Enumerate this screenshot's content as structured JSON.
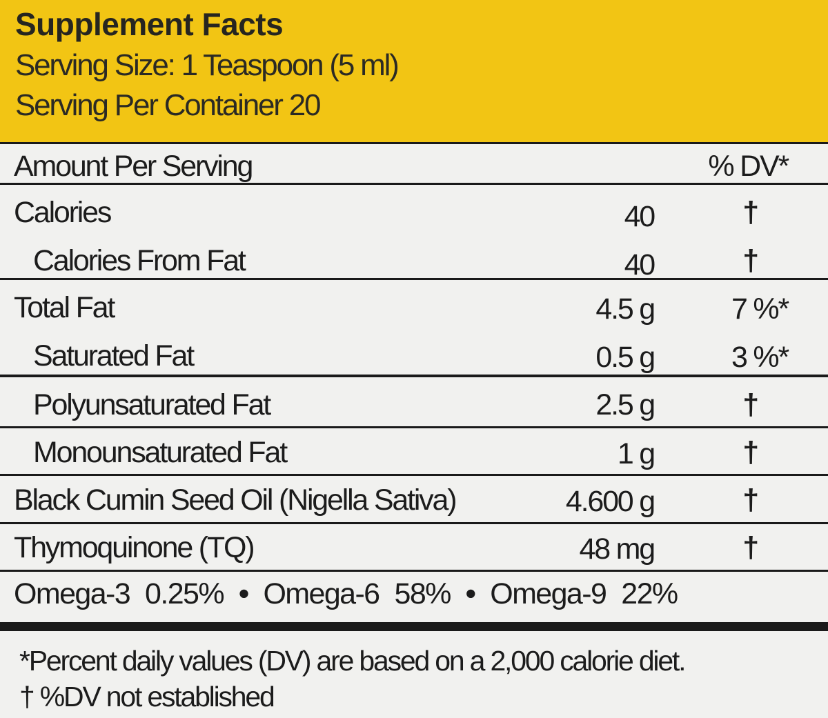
{
  "header": {
    "title": "Supplement Facts",
    "serving_size": "Serving Size: 1 Teaspoon (5 ml)",
    "servings_per_container": "Serving Per Container 20"
  },
  "table": {
    "column_header_label": "Amount Per Serving",
    "column_header_dv": "% DV*",
    "rows": [
      {
        "label": "Calories",
        "amount": "40",
        "dv": "†"
      },
      {
        "label": "Calories From Fat",
        "amount": "40",
        "dv": "†"
      },
      {
        "label": "Total Fat",
        "amount": "4.5 g",
        "dv": "7 %*"
      },
      {
        "label": "Saturated Fat",
        "amount": "0.5 g",
        "dv": "3 %*"
      },
      {
        "label": "Polyunsaturated Fat",
        "amount": "2.5 g",
        "dv": "†"
      },
      {
        "label": "Monounsaturated Fat",
        "amount": "1 g",
        "dv": "†"
      },
      {
        "label": "Black Cumin Seed Oil (Nigella Sativa)",
        "amount": "4.600 g",
        "dv": "†"
      },
      {
        "label": "Thymoquinone (TQ)",
        "amount": "48 mg",
        "dv": "†"
      }
    ],
    "omega": [
      {
        "name": "Omega-3",
        "value": "0.25%"
      },
      {
        "name": "Omega-6",
        "value": "58%"
      },
      {
        "name": "Omega-9",
        "value": "22%"
      }
    ],
    "separator": "•"
  },
  "footnotes": {
    "dv_note": "*Percent daily values (DV) are based on a 2,000 calorie diet.",
    "dagger_note": "† %DV not established"
  },
  "colors": {
    "header_bg": "#f2c514",
    "panel_bg": "#f1f1ef",
    "rule": "#1a1a1a"
  }
}
